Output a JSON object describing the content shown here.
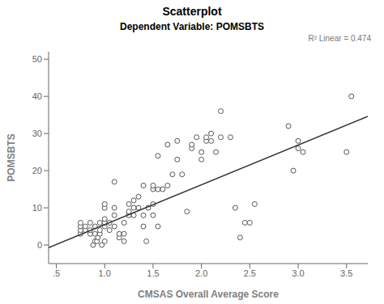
{
  "chart_data": {
    "type": "scatter",
    "title": "Scatterplot",
    "subtitle": "Dependent Variable: POMSBTS",
    "xlabel": "CMSAS Overall Average Score",
    "ylabel": "POMSBTS",
    "annotation": "R² Linear = 0.474",
    "xlim": [
      0.42,
      3.72
    ],
    "ylim": [
      -5,
      52
    ],
    "xticks": [
      {
        "value": 0.5,
        "label": ".5"
      },
      {
        "value": 1.0,
        "label": "1.0"
      },
      {
        "value": 1.5,
        "label": "1.5"
      },
      {
        "value": 2.0,
        "label": "2.0"
      },
      {
        "value": 2.5,
        "label": "2.5"
      },
      {
        "value": 3.0,
        "label": "3.0"
      },
      {
        "value": 3.5,
        "label": "3.5"
      }
    ],
    "yticks": [
      0,
      10,
      20,
      30,
      40,
      50
    ],
    "grid": false,
    "series": [
      {
        "type": "scatter",
        "marker": "open circle",
        "color": "#555555",
        "x": [
          0.75,
          0.75,
          0.75,
          0.75,
          0.8,
          0.8,
          0.85,
          0.85,
          0.85,
          0.88,
          0.9,
          0.9,
          0.9,
          0.92,
          0.93,
          0.95,
          0.95,
          0.95,
          0.97,
          1.0,
          1.0,
          1.0,
          1.0,
          1.0,
          1.0,
          1.05,
          1.05,
          1.1,
          1.1,
          1.1,
          1.1,
          1.15,
          1.15,
          1.2,
          1.2,
          1.2,
          1.25,
          1.25,
          1.25,
          1.3,
          1.3,
          1.3,
          1.35,
          1.35,
          1.4,
          1.4,
          1.4,
          1.43,
          1.45,
          1.5,
          1.5,
          1.5,
          1.5,
          1.55,
          1.55,
          1.55,
          1.6,
          1.65,
          1.65,
          1.7,
          1.75,
          1.75,
          1.8,
          1.85,
          1.9,
          1.9,
          1.95,
          2.0,
          2.0,
          2.05,
          2.05,
          2.1,
          2.1,
          2.15,
          2.2,
          2.2,
          2.3,
          2.35,
          2.4,
          2.45,
          2.5,
          2.55,
          2.9,
          2.95,
          3.0,
          3.0,
          3.05,
          3.5,
          3.55
        ],
        "values": [
          3,
          4,
          5,
          6,
          4,
          5,
          3,
          4,
          6,
          0,
          1,
          3,
          5,
          1,
          2,
          3,
          4,
          6,
          0,
          1,
          5,
          6,
          7,
          10,
          11,
          4,
          6,
          5,
          8,
          10,
          17,
          2,
          3,
          1,
          3,
          6,
          8,
          9,
          11,
          8,
          10,
          12,
          10,
          13,
          5,
          8,
          16,
          1,
          10,
          8,
          11,
          15,
          16,
          5,
          15,
          24,
          15,
          16,
          27,
          19,
          23,
          28,
          19,
          9,
          26,
          27,
          29,
          23,
          25,
          28,
          29,
          28,
          30,
          25,
          29,
          36,
          29,
          10,
          2,
          6,
          6,
          11,
          32,
          20,
          26,
          28,
          25,
          25,
          40
        ]
      },
      {
        "type": "line",
        "line_style": "solid",
        "color": "#333333",
        "x": [
          0.42,
          3.72
        ],
        "values": [
          -0.706,
          34.604
        ]
      }
    ]
  }
}
